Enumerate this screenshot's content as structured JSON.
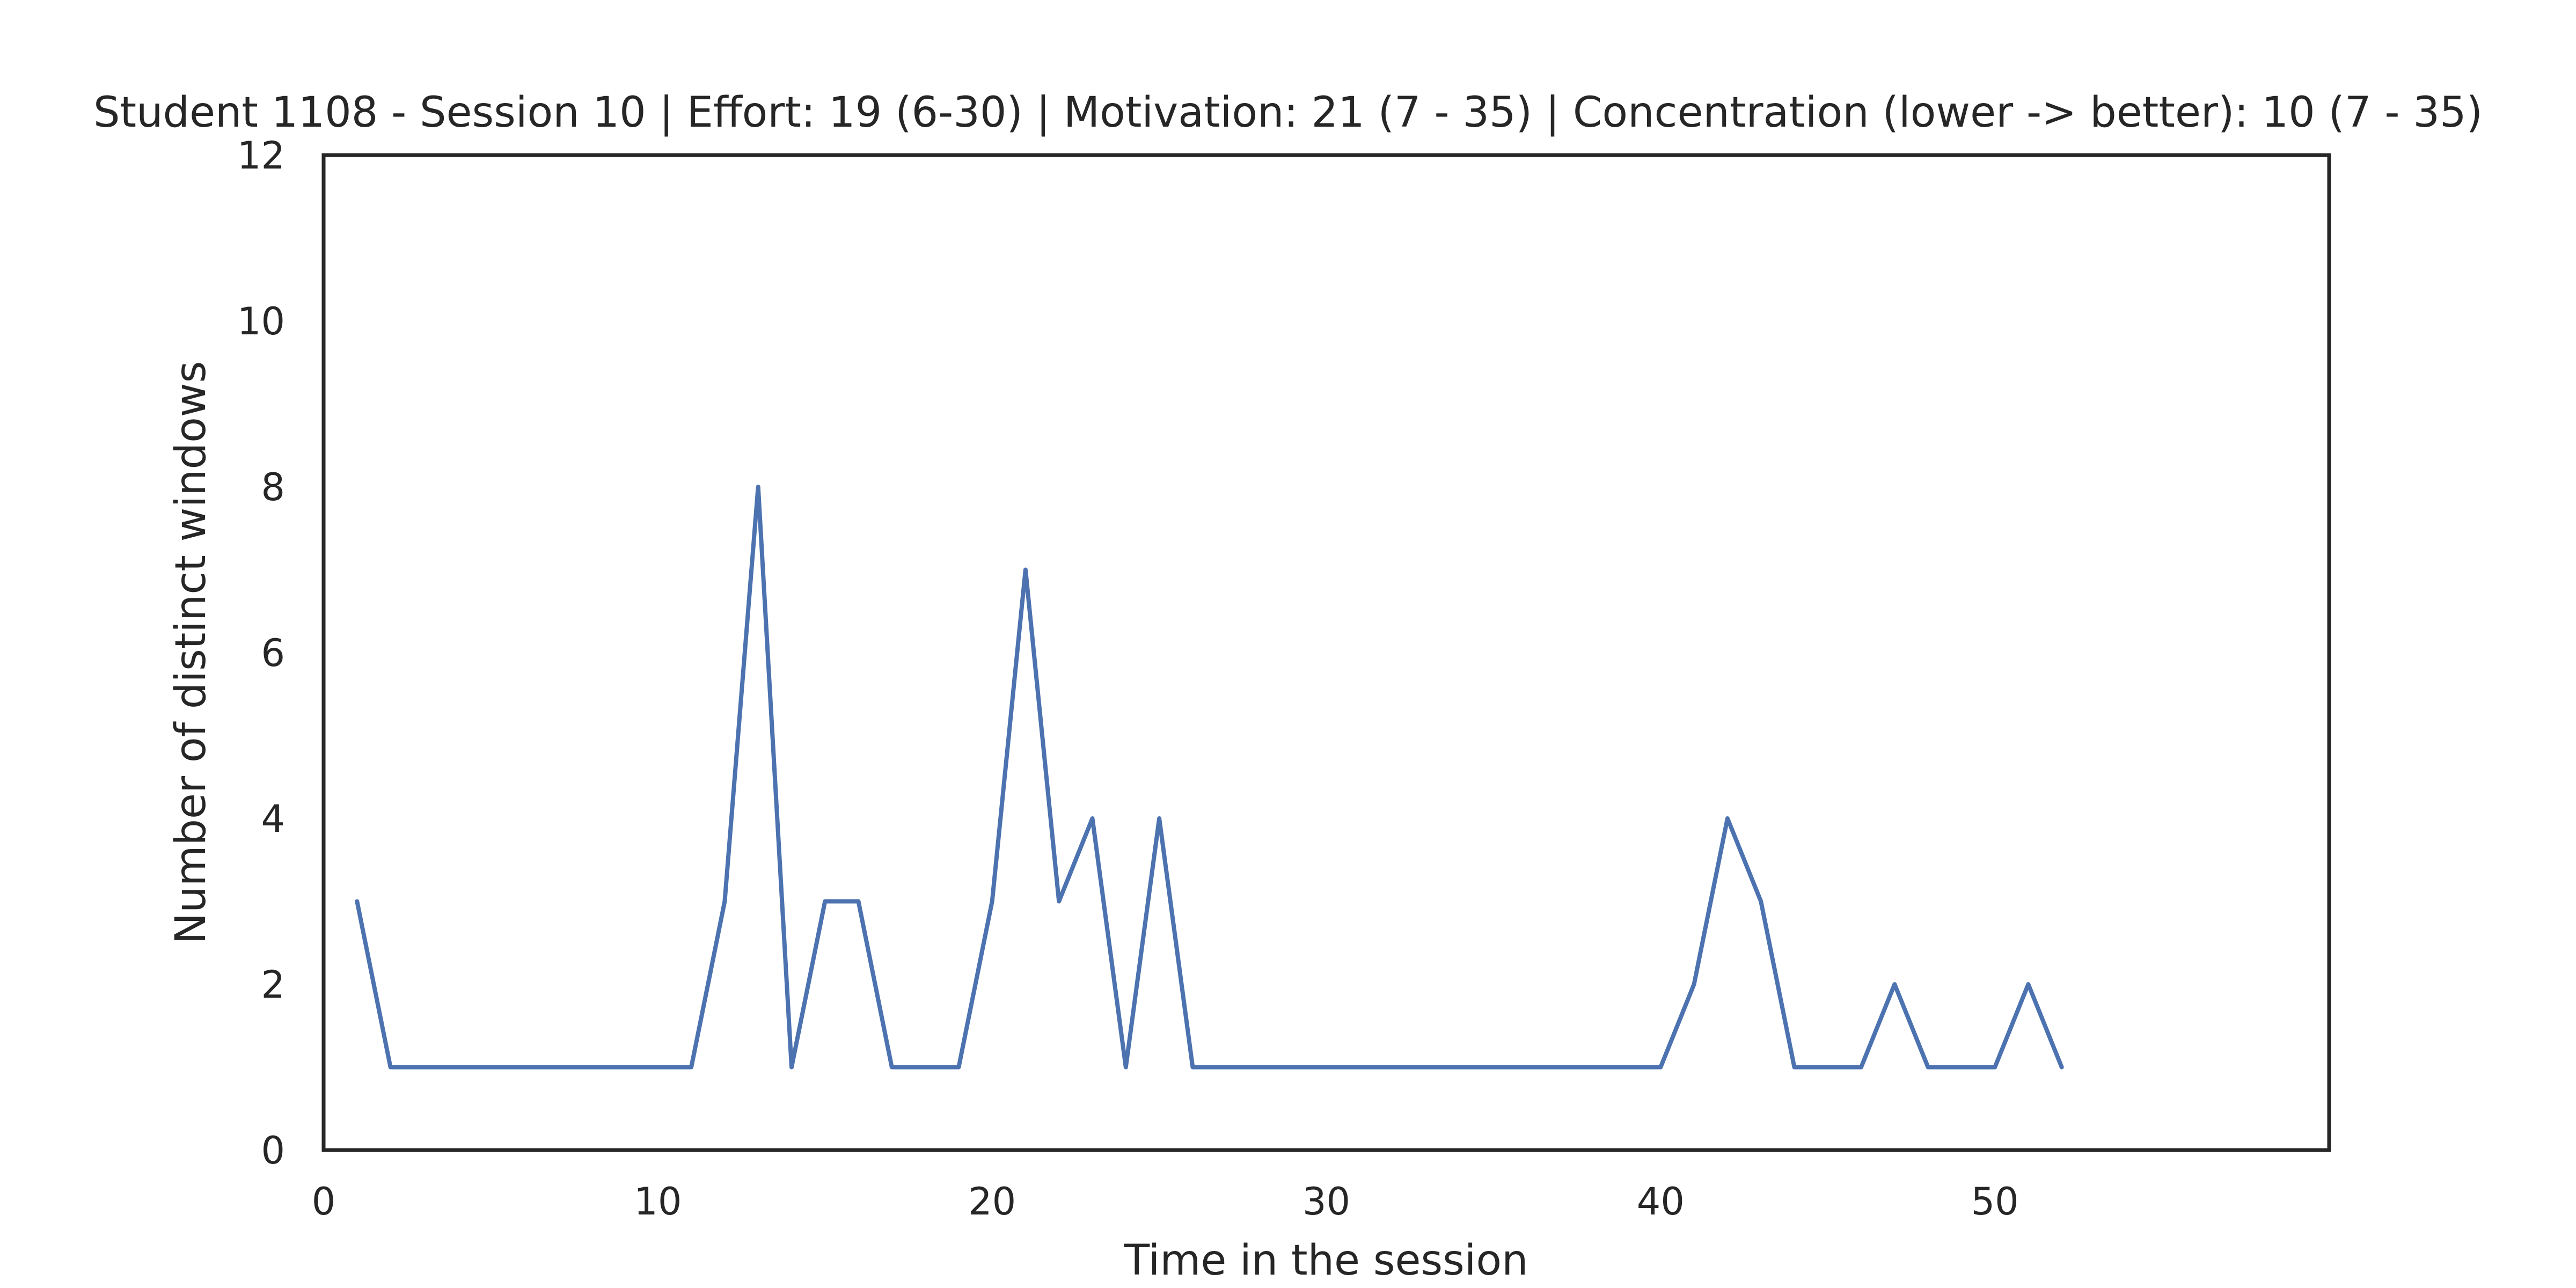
{
  "chart_data": {
    "type": "line",
    "title": "Student 1108 - Session 10 | Effort: 19 (6-30) | Motivation: 21 (7 - 35) | Concentration (lower -> better): 10 (7 - 35)",
    "xlabel": "Time in the session",
    "ylabel": "Number of distinct windows",
    "xlim": [
      0,
      60
    ],
    "ylim": [
      0,
      12
    ],
    "xticks": [
      0,
      10,
      20,
      30,
      40,
      50
    ],
    "yticks": [
      0,
      2,
      4,
      6,
      8,
      10,
      12
    ],
    "grid": false,
    "colors": {
      "line": "#4c72b0",
      "frame": "#262626"
    },
    "series": [
      {
        "x": [
          1,
          2,
          3,
          4,
          5,
          6,
          7,
          8,
          9,
          10,
          11,
          12,
          13,
          14,
          15,
          16,
          17,
          18,
          19,
          20,
          21,
          22,
          23,
          24,
          25,
          26,
          27,
          28,
          29,
          30,
          31,
          32,
          33,
          34,
          35,
          36,
          37,
          38,
          39,
          40,
          41,
          42,
          43,
          44,
          45,
          46,
          47,
          48,
          49,
          50,
          51,
          52
        ],
        "values": [
          3,
          1,
          1,
          1,
          1,
          1,
          1,
          1,
          1,
          1,
          1,
          3,
          8,
          1,
          3,
          3,
          1,
          1,
          1,
          3,
          7,
          3,
          4,
          1,
          4,
          1,
          1,
          1,
          1,
          1,
          1,
          1,
          1,
          1,
          1,
          1,
          1,
          1,
          1,
          1,
          2,
          4,
          3,
          1,
          1,
          1,
          2,
          1,
          1,
          1,
          2,
          1
        ]
      }
    ]
  }
}
